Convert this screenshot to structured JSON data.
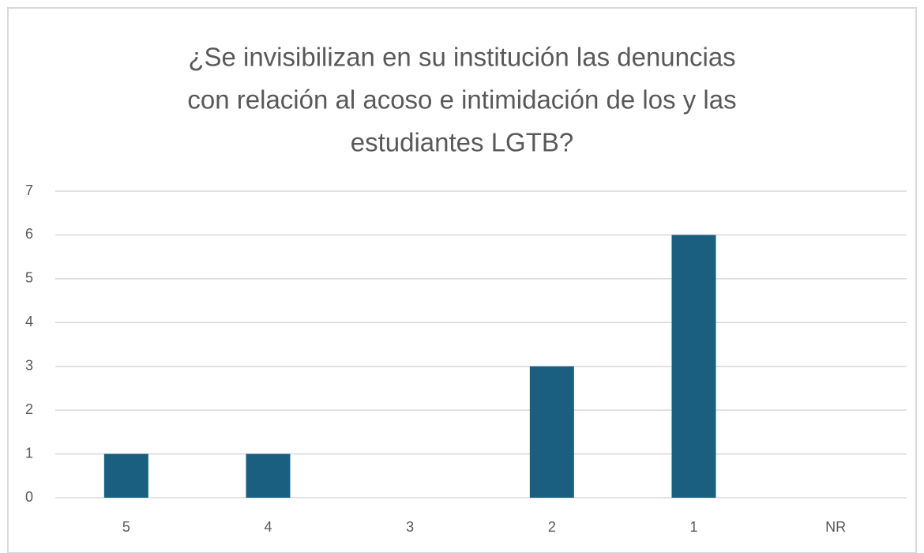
{
  "chart_data": {
    "type": "bar",
    "title": [
      "¿Se invisibilizan en su institución las denuncias",
      "con relación al acoso e intimidación de los y las",
      "estudiantes LGTB?"
    ],
    "categories": [
      "5",
      "4",
      "3",
      "2",
      "1",
      "NR"
    ],
    "values": [
      1,
      1,
      0,
      3,
      6,
      0
    ],
    "color": "#1a5e80",
    "ylim": [
      0,
      7
    ],
    "yticks": [
      0,
      1,
      2,
      3,
      4,
      5,
      6,
      7
    ],
    "grid": true
  }
}
